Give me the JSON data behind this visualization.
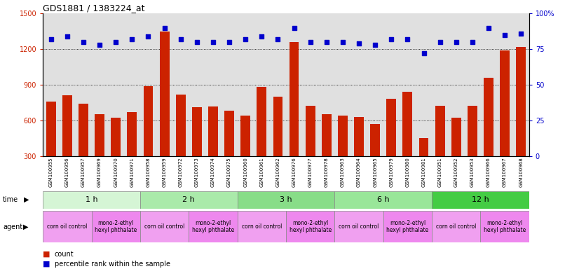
{
  "title": "GDS1881 / 1383224_at",
  "samples": [
    "GSM100955",
    "GSM100956",
    "GSM100957",
    "GSM100969",
    "GSM100970",
    "GSM100971",
    "GSM100958",
    "GSM100959",
    "GSM100972",
    "GSM100973",
    "GSM100974",
    "GSM100975",
    "GSM100960",
    "GSM100961",
    "GSM100962",
    "GSM100976",
    "GSM100977",
    "GSM100978",
    "GSM100963",
    "GSM100964",
    "GSM100965",
    "GSM100979",
    "GSM100980",
    "GSM100981",
    "GSM100951",
    "GSM100952",
    "GSM100953",
    "GSM100966",
    "GSM100967",
    "GSM100968"
  ],
  "counts": [
    760,
    810,
    740,
    650,
    620,
    670,
    890,
    1350,
    820,
    710,
    715,
    680,
    640,
    880,
    800,
    1260,
    720,
    650,
    640,
    630,
    570,
    780,
    840,
    450,
    720,
    620,
    720,
    960,
    1190,
    1220
  ],
  "percentile_ranks": [
    82,
    84,
    80,
    78,
    80,
    82,
    84,
    90,
    82,
    80,
    80,
    80,
    82,
    84,
    82,
    90,
    80,
    80,
    80,
    79,
    78,
    82,
    82,
    72,
    80,
    80,
    80,
    90,
    85,
    86
  ],
  "time_groups": [
    {
      "label": "1 h",
      "start": 0,
      "end": 6,
      "color": "#d5f5d5"
    },
    {
      "label": "2 h",
      "start": 6,
      "end": 12,
      "color": "#aaeaaa"
    },
    {
      "label": "3 h",
      "start": 12,
      "end": 18,
      "color": "#88dd88"
    },
    {
      "label": "6 h",
      "start": 18,
      "end": 24,
      "color": "#99e699"
    },
    {
      "label": "12 h",
      "start": 24,
      "end": 30,
      "color": "#44cc44"
    }
  ],
  "agent_groups": [
    {
      "label": "corn oil control",
      "start": 0,
      "end": 3,
      "color": "#f0a0f0"
    },
    {
      "label": "mono-2-ethyl\nhexyl phthalate",
      "start": 3,
      "end": 6,
      "color": "#ee88ee"
    },
    {
      "label": "corn oil control",
      "start": 6,
      "end": 9,
      "color": "#f0a0f0"
    },
    {
      "label": "mono-2-ethyl\nhexyl phthalate",
      "start": 9,
      "end": 12,
      "color": "#ee88ee"
    },
    {
      "label": "corn oil control",
      "start": 12,
      "end": 15,
      "color": "#f0a0f0"
    },
    {
      "label": "mono-2-ethyl\nhexyl phthalate",
      "start": 15,
      "end": 18,
      "color": "#ee88ee"
    },
    {
      "label": "corn oil control",
      "start": 18,
      "end": 21,
      "color": "#f0a0f0"
    },
    {
      "label": "mono-2-ethyl\nhexyl phthalate",
      "start": 21,
      "end": 24,
      "color": "#ee88ee"
    },
    {
      "label": "corn oil control",
      "start": 24,
      "end": 27,
      "color": "#f0a0f0"
    },
    {
      "label": "mono-2-ethyl\nhexyl phthalate",
      "start": 27,
      "end": 30,
      "color": "#ee88ee"
    }
  ],
  "bar_color": "#cc2200",
  "dot_color": "#0000cc",
  "ylim_left": [
    300,
    1500
  ],
  "ylim_right": [
    0,
    100
  ],
  "yticks_left": [
    300,
    600,
    900,
    1200,
    1500
  ],
  "yticks_right": [
    0,
    25,
    50,
    75,
    100
  ],
  "grid_lines": [
    600,
    900,
    1200
  ],
  "background_color": "#ffffff",
  "plot_bg_color": "#e0e0e0"
}
